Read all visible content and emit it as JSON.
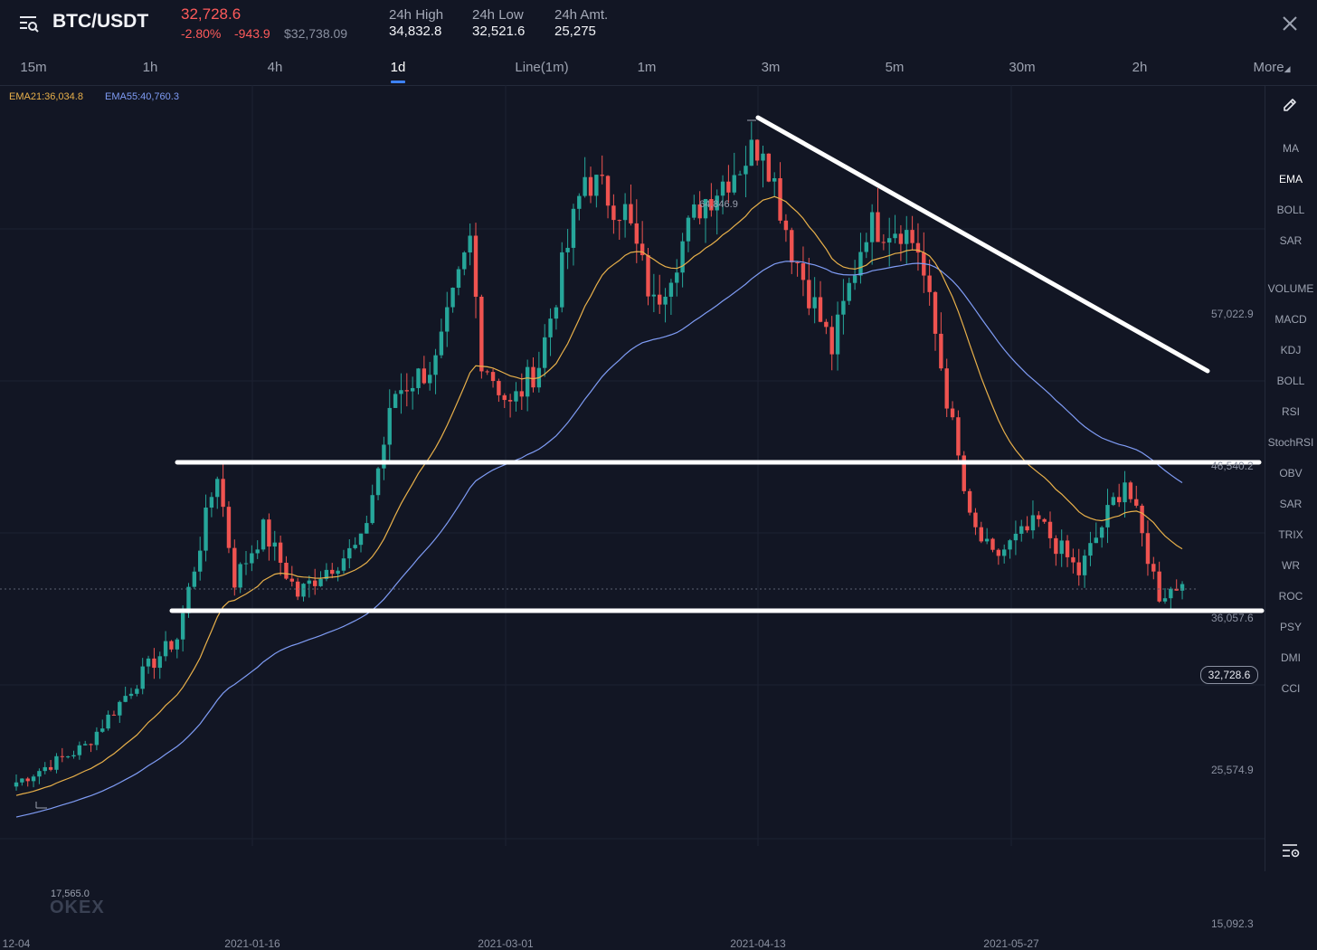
{
  "header": {
    "pair": "BTC/USDT",
    "last_price": "32,728.6",
    "change_pct": "-2.80%",
    "change_abs": "-943.9",
    "usd_price": "$32,738.09",
    "stats": [
      {
        "label": "24h High",
        "value": "34,832.8"
      },
      {
        "label": "24h Low",
        "value": "32,521.6"
      },
      {
        "label": "24h Amt.",
        "value": "25,275"
      }
    ]
  },
  "tabs": [
    "15m",
    "1h",
    "4h",
    "1d",
    "Line(1m)",
    "1m",
    "3m",
    "5m",
    "30m",
    "2h",
    "More"
  ],
  "active_tab": "1d",
  "legend": {
    "ema21": "EMA21:36,034.8",
    "ema55": "EMA55:40,760.3"
  },
  "indicators_main": [
    "MA",
    "EMA",
    "BOLL",
    "SAR"
  ],
  "indicators_sub": [
    "VOLUME",
    "MACD",
    "KDJ",
    "BOLL",
    "RSI",
    "StochRSI",
    "OBV",
    "SAR",
    "TRIX",
    "WR",
    "ROC",
    "PSY",
    "DMI",
    "CCI"
  ],
  "active_indicator": "EMA",
  "watermark": "OKEX",
  "colors": {
    "up": "#26a69a",
    "down": "#ef5350",
    "ema21": "#e8b04a",
    "ema55": "#7f9cf5",
    "accent": "#3d82ff"
  },
  "chart_data": {
    "type": "candlestick",
    "price_axis": [
      "57,022.9",
      "46,540.2",
      "36,057.6",
      "25,574.9",
      "15,092.3"
    ],
    "current_price_label": "32,728.6",
    "high_marker": "64,846.9",
    "low_marker": "17,565.0",
    "date_axis": [
      "12-04",
      "2021-01-16",
      "2021-03-01",
      "2021-04-13",
      "2021-05-27"
    ],
    "ylim": [
      15092.3,
      64846.9
    ],
    "anchors": [
      {
        "date": "2020-12-04",
        "close": 19000
      },
      {
        "date": "2020-12-16",
        "close": 21500
      },
      {
        "date": "2020-12-27",
        "close": 27000
      },
      {
        "date": "2021-01-01",
        "close": 29000
      },
      {
        "date": "2021-01-08",
        "close": 40500
      },
      {
        "date": "2021-01-11",
        "close": 33000
      },
      {
        "date": "2021-01-16",
        "close": 36500
      },
      {
        "date": "2021-01-22",
        "close": 32000
      },
      {
        "date": "2021-01-26",
        "close": 33500
      },
      {
        "date": "2021-02-02",
        "close": 35500
      },
      {
        "date": "2021-02-08",
        "close": 46000
      },
      {
        "date": "2021-02-15",
        "close": 48000
      },
      {
        "date": "2021-02-21",
        "close": 56500
      },
      {
        "date": "2021-02-23",
        "close": 48500
      },
      {
        "date": "2021-02-28",
        "close": 45000
      },
      {
        "date": "2021-03-05",
        "close": 48000
      },
      {
        "date": "2021-03-13",
        "close": 61000
      },
      {
        "date": "2021-03-20",
        "close": 58500
      },
      {
        "date": "2021-03-25",
        "close": 52000
      },
      {
        "date": "2021-04-02",
        "close": 59000
      },
      {
        "date": "2021-04-13",
        "close": 63500
      },
      {
        "date": "2021-04-18",
        "close": 56000
      },
      {
        "date": "2021-04-25",
        "close": 49000
      },
      {
        "date": "2021-05-01",
        "close": 57500
      },
      {
        "date": "2021-05-07",
        "close": 57500
      },
      {
        "date": "2021-05-10",
        "close": 56000
      },
      {
        "date": "2021-05-13",
        "close": 50000
      },
      {
        "date": "2021-05-19",
        "close": 37000
      },
      {
        "date": "2021-05-23",
        "close": 34500
      },
      {
        "date": "2021-05-31",
        "close": 37000
      },
      {
        "date": "2021-06-07",
        "close": 33500
      },
      {
        "date": "2021-06-15",
        "close": 40000
      },
      {
        "date": "2021-06-21",
        "close": 32000
      },
      {
        "date": "2021-06-25",
        "close": 32728.6
      }
    ]
  }
}
